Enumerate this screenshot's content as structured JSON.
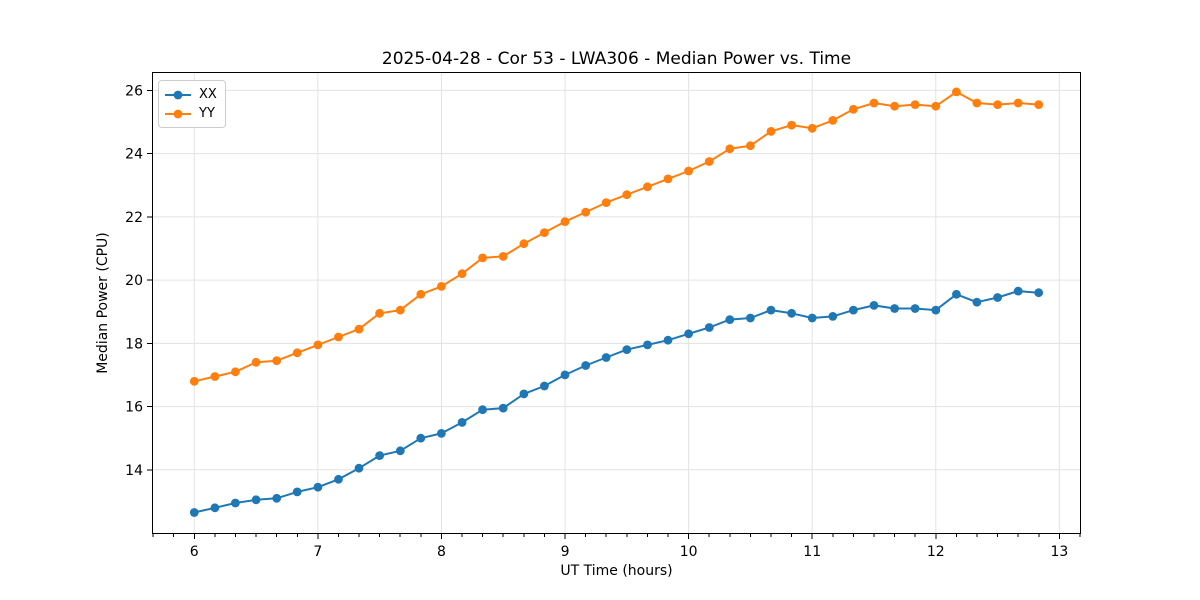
{
  "chart_data": {
    "type": "line",
    "title": "2025-04-28 - Cor 53 - LWA306 - Median Power vs. Time",
    "xlabel": "UT Time (hours)",
    "ylabel": "Median Power (CPU)",
    "xlim": [
      5.658,
      13.175
    ],
    "ylim": [
      11.97,
      26.58
    ],
    "xticks": [
      6,
      7,
      8,
      9,
      10,
      11,
      12,
      13
    ],
    "yticks": [
      14,
      16,
      18,
      20,
      22,
      24,
      26
    ],
    "x_minor_subdivisions": 6,
    "grid": true,
    "grid_color": "#e3e3e3",
    "legend_position": "upper left",
    "x": [
      6.0,
      6.167,
      6.333,
      6.5,
      6.667,
      6.833,
      7.0,
      7.167,
      7.333,
      7.5,
      7.667,
      7.833,
      8.0,
      8.167,
      8.333,
      8.5,
      8.667,
      8.833,
      9.0,
      9.167,
      9.333,
      9.5,
      9.667,
      9.833,
      10.0,
      10.167,
      10.333,
      10.5,
      10.667,
      10.833,
      11.0,
      11.167,
      11.333,
      11.5,
      11.667,
      11.833,
      12.0,
      12.167,
      12.333,
      12.5,
      12.667,
      12.833
    ],
    "series": [
      {
        "name": "XX",
        "color": "#1f77b4",
        "values": [
          12.65,
          12.8,
          12.95,
          13.05,
          13.1,
          13.3,
          13.45,
          13.7,
          14.05,
          14.45,
          14.6,
          15.0,
          15.15,
          15.5,
          15.9,
          15.95,
          16.4,
          16.65,
          17.0,
          17.3,
          17.55,
          17.8,
          17.95,
          18.1,
          18.3,
          18.5,
          18.75,
          18.8,
          19.05,
          18.95,
          18.8,
          18.85,
          19.05,
          19.2,
          19.1,
          19.1,
          19.05,
          19.55,
          19.3,
          19.45,
          19.65,
          19.6
        ]
      },
      {
        "name": "YY",
        "color": "#ff7f0e",
        "values": [
          16.8,
          16.95,
          17.1,
          17.4,
          17.45,
          17.7,
          17.95,
          18.2,
          18.45,
          18.95,
          19.05,
          19.55,
          19.8,
          20.2,
          20.7,
          20.75,
          21.15,
          21.5,
          21.85,
          22.15,
          22.45,
          22.7,
          22.95,
          23.2,
          23.45,
          23.75,
          24.15,
          24.25,
          24.7,
          24.9,
          24.8,
          25.05,
          25.4,
          25.6,
          25.5,
          25.55,
          25.5,
          25.95,
          25.6,
          25.55,
          25.6,
          25.55
        ]
      }
    ]
  }
}
